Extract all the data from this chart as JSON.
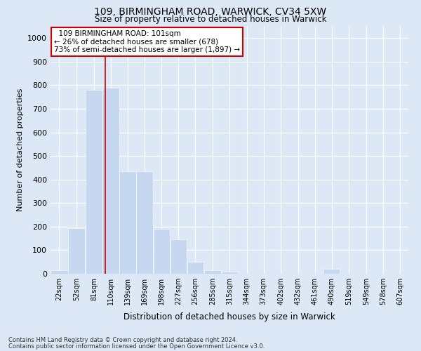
{
  "title1": "109, BIRMINGHAM ROAD, WARWICK, CV34 5XW",
  "title2": "Size of property relative to detached houses in Warwick",
  "xlabel": "Distribution of detached houses by size in Warwick",
  "ylabel": "Number of detached properties",
  "footnote1": "Contains HM Land Registry data © Crown copyright and database right 2024.",
  "footnote2": "Contains public sector information licensed under the Open Government Licence v3.0.",
  "annotation_line1": "109 BIRMINGHAM ROAD: 101sqm",
  "annotation_line2": "← 26% of detached houses are smaller (678)",
  "annotation_line3": "73% of semi-detached houses are larger (1,897) →",
  "bar_color": "#c5d8f0",
  "vline_color": "#cc0000",
  "vline_x": 101,
  "background_color": "#dce8f5",
  "plot_bg_color": "#dce8f5",
  "categories": [
    "22sqm",
    "52sqm",
    "81sqm",
    "110sqm",
    "139sqm",
    "169sqm",
    "198sqm",
    "227sqm",
    "256sqm",
    "285sqm",
    "315sqm",
    "344sqm",
    "373sqm",
    "402sqm",
    "432sqm",
    "461sqm",
    "490sqm",
    "519sqm",
    "549sqm",
    "578sqm",
    "607sqm"
  ],
  "bin_edges": [
    7,
    37,
    67,
    96,
    125,
    154,
    183,
    212,
    241,
    270,
    300,
    329,
    358,
    387,
    417,
    446,
    475,
    504,
    534,
    563,
    592,
    621
  ],
  "values": [
    15,
    195,
    780,
    790,
    435,
    435,
    190,
    145,
    50,
    15,
    10,
    0,
    0,
    0,
    0,
    0,
    20,
    0,
    0,
    0,
    0
  ],
  "ylim": [
    0,
    1050
  ],
  "yticks": [
    0,
    100,
    200,
    300,
    400,
    500,
    600,
    700,
    800,
    900,
    1000
  ]
}
